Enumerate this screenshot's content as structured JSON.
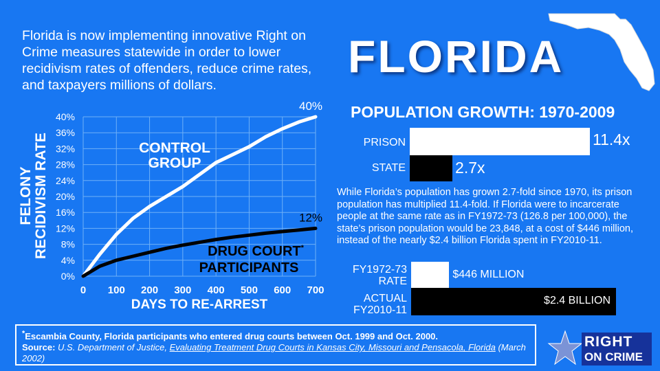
{
  "intro": "Florida is now implementing innovative Right on Crime measures statewide in order to lower recidivism rates of offenders, reduce crime rates, and taxpayers millions of dollars.",
  "state_title": "FLORIDA",
  "colors": {
    "background": "#1877f2",
    "white": "#ffffff",
    "black": "#000000",
    "logo_navy": "#16329a"
  },
  "chart_data": [
    {
      "type": "line",
      "xlabel": "DAYS TO RE-ARREST",
      "ylabel": "FELONY RECIDIVISM RATE",
      "xlim": [
        0,
        700
      ],
      "ylim": [
        0,
        40
      ],
      "x_ticks": [
        "0",
        "100",
        "200",
        "300",
        "400",
        "500",
        "600",
        "700"
      ],
      "y_ticks": [
        "0%",
        "4%",
        "8%",
        "12%",
        "16%",
        "20%",
        "24%",
        "28%",
        "32%",
        "36%",
        "40%"
      ],
      "grid": true,
      "series": [
        {
          "name": "CONTROL GROUP",
          "color": "#ffffff",
          "x": [
            0,
            50,
            100,
            150,
            200,
            250,
            300,
            350,
            400,
            450,
            500,
            550,
            600,
            650,
            700
          ],
          "y": [
            0,
            5.5,
            10.5,
            14.5,
            17.5,
            20,
            22.5,
            25.5,
            28.5,
            30.5,
            32.5,
            35,
            37,
            38.7,
            40
          ],
          "end_label": "40%"
        },
        {
          "name": "DRUG COURT PARTICIPANTS",
          "color": "#000000",
          "x": [
            0,
            50,
            100,
            150,
            200,
            250,
            300,
            350,
            400,
            450,
            500,
            550,
            600,
            650,
            700
          ],
          "y": [
            0,
            2.5,
            4,
            5,
            6,
            7,
            7.8,
            8.5,
            9.2,
            9.8,
            10.3,
            10.8,
            11.2,
            11.6,
            12
          ],
          "end_label": "12%",
          "marker": "*"
        }
      ]
    },
    {
      "type": "bar",
      "orientation": "horizontal",
      "title": "POPULATION GROWTH: 1970-2009",
      "categories": [
        "PRISON",
        "STATE"
      ],
      "values": [
        11.4,
        2.7
      ],
      "value_labels": [
        "11.4x",
        "2.7x"
      ],
      "colors": [
        "#ffffff",
        "#000000"
      ]
    },
    {
      "type": "bar",
      "orientation": "horizontal",
      "categories": [
        "FY1972-73 RATE",
        "ACTUAL FY2010-11"
      ],
      "values": [
        0.446,
        2.4
      ],
      "value_labels": [
        "$446 MILLION",
        "$2.4 BILLION"
      ],
      "colors": [
        "#ffffff",
        "#000000"
      ]
    }
  ],
  "body_text": "While Florida’s population has grown 2.7-fold since 1970, its prison population has multiplied 11.4-fold. If Florida were to incarcerate people at the same rate as in FY1972-73 (126.8 per 100,000), the state’s prison population would be 23,848, at a cost of $446 million, instead of the nearly $2.4 billion Florida spent in FY2010-11.",
  "cost_labels": {
    "rate_line1": "FY1972-73",
    "rate_line2": "RATE",
    "actual_line1": "ACTUAL",
    "actual_line2": "FY2010-11"
  },
  "footnote": {
    "asterisk": "*",
    "note": "Escambia County, Florida participants who entered drug courts between Oct. 1999 and Oct. 2000.",
    "source_label": "Source:",
    "source_agency": "U.S. Department of Justice,",
    "source_title": "Evaluating Treatment Drug Courts in Kansas City, Missouri and Pensacola, Florida",
    "source_date": "(March 2002)"
  },
  "logo": {
    "line1": "RIGHT",
    "line2": "ON CRIME"
  }
}
